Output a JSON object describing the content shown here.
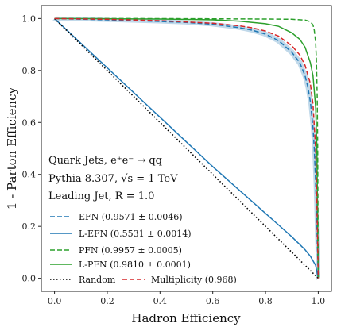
{
  "chart_data": {
    "type": "line",
    "xlabel": "Hadron Efficiency",
    "ylabel": "1 - Parton Efficiency",
    "xlim": [
      -0.05,
      1.05
    ],
    "ylim": [
      -0.05,
      1.05
    ],
    "xticks": [
      "0.0",
      "0.2",
      "0.4",
      "0.6",
      "0.8",
      "1.0"
    ],
    "yticks": [
      "0.0",
      "0.2",
      "0.4",
      "0.6",
      "0.8",
      "1.0"
    ],
    "annotations": [
      "Quark Jets, e⁺e⁻ → qq̄",
      "Pythia 8.307, √s = 1 TeV",
      "Leading Jet, R = 1.0"
    ],
    "legend_position": "lower-left",
    "series": [
      {
        "name": "EFN (0.9571 ± 0.0046)",
        "color": "#1f77b4",
        "style": "dashed",
        "band": true,
        "x": [
          0,
          0.2,
          0.4,
          0.5,
          0.6,
          0.7,
          0.75,
          0.8,
          0.85,
          0.9,
          0.93,
          0.95,
          0.96,
          0.97,
          0.98,
          0.985,
          0.99,
          0.995,
          1.0
        ],
        "y": [
          1.0,
          0.995,
          0.989,
          0.985,
          0.978,
          0.965,
          0.955,
          0.94,
          0.915,
          0.87,
          0.83,
          0.78,
          0.74,
          0.68,
          0.58,
          0.5,
          0.37,
          0.2,
          0.0
        ]
      },
      {
        "name": "L-EFN (0.5531 ± 0.0014)",
        "color": "#1f77b4",
        "style": "solid",
        "band": false,
        "x": [
          0,
          0.1,
          0.2,
          0.3,
          0.4,
          0.5,
          0.6,
          0.7,
          0.8,
          0.85,
          0.9,
          0.95,
          0.97,
          0.99,
          1.0
        ],
        "y": [
          1.0,
          0.905,
          0.81,
          0.715,
          0.62,
          0.525,
          0.43,
          0.34,
          0.25,
          0.205,
          0.16,
          0.11,
          0.085,
          0.05,
          0.0
        ]
      },
      {
        "name": "PFN (0.9957 ± 0.0005)",
        "color": "#2ca02c",
        "style": "dashed",
        "band": false,
        "x": [
          0,
          0.3,
          0.6,
          0.8,
          0.9,
          0.95,
          0.97,
          0.98,
          0.985,
          0.99,
          0.993,
          0.996,
          0.998,
          1.0
        ],
        "y": [
          1.0,
          1.0,
          0.999,
          0.998,
          0.997,
          0.994,
          0.988,
          0.975,
          0.955,
          0.91,
          0.84,
          0.7,
          0.5,
          0.0
        ]
      },
      {
        "name": "L-PFN (0.9810 ± 0.0001)",
        "color": "#2ca02c",
        "style": "solid",
        "band": false,
        "x": [
          0,
          0.2,
          0.4,
          0.6,
          0.7,
          0.8,
          0.85,
          0.9,
          0.93,
          0.95,
          0.97,
          0.98,
          0.99,
          0.995,
          1.0
        ],
        "y": [
          1.0,
          0.999,
          0.998,
          0.995,
          0.99,
          0.98,
          0.97,
          0.945,
          0.92,
          0.89,
          0.83,
          0.78,
          0.66,
          0.5,
          0.0
        ]
      },
      {
        "name": "Random",
        "color": "#000000",
        "style": "dotted",
        "band": false,
        "x": [
          0,
          1
        ],
        "y": [
          1,
          0
        ]
      },
      {
        "name": "Multiplicity (0.968)",
        "color": "#d62728",
        "style": "dashed",
        "band": false,
        "x": [
          0,
          0.2,
          0.4,
          0.6,
          0.7,
          0.75,
          0.8,
          0.85,
          0.9,
          0.93,
          0.95,
          0.97,
          0.98,
          0.99,
          0.995,
          1.0
        ],
        "y": [
          1.0,
          0.997,
          0.992,
          0.982,
          0.972,
          0.964,
          0.952,
          0.932,
          0.895,
          0.86,
          0.82,
          0.75,
          0.67,
          0.5,
          0.3,
          0.0
        ]
      }
    ]
  }
}
